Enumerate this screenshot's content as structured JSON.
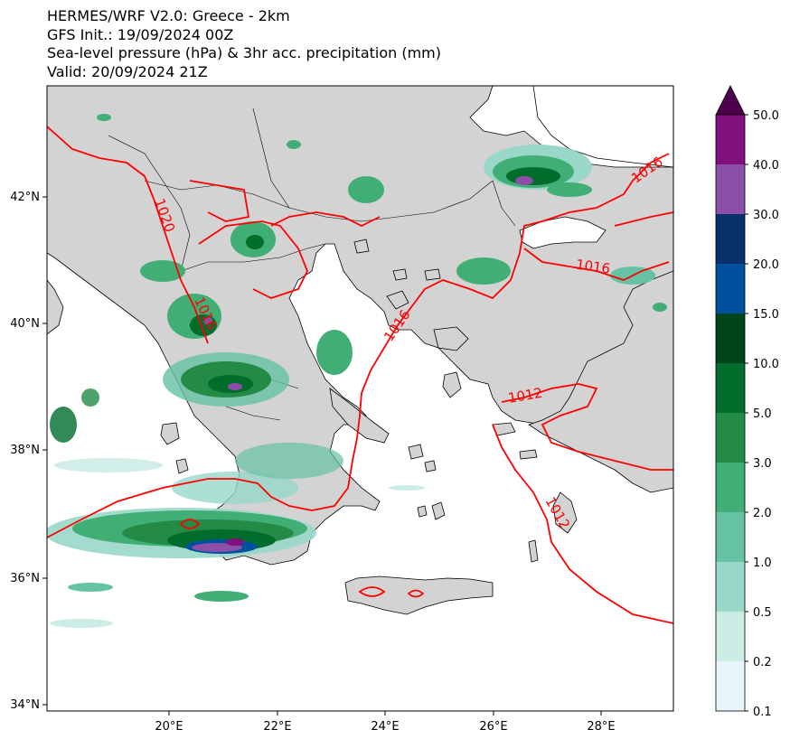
{
  "header": {
    "line1": "HERMES/WRF V2.0: Greece - 2km",
    "line2": "GFS Init.: 19/09/2024 00Z",
    "line3": "Sea-level pressure (hPa) & 3hr acc. precipitation (mm)",
    "line4": "Valid: 20/09/2024 21Z"
  },
  "map": {
    "lon_ticks": [
      "20°E",
      "22°E",
      "24°E",
      "26°E",
      "28°E"
    ],
    "lat_ticks": [
      "42°N",
      "40°N",
      "38°N",
      "36°N",
      "34°N"
    ],
    "land_color": "#d3d3d3",
    "sea_color": "#ffffff",
    "isobar_color": "#ff0000",
    "isobar_labels": [
      "1020",
      "1016",
      "1016",
      "1016",
      "1012",
      "1012"
    ]
  },
  "colorbar": {
    "levels": [
      "0.1",
      "0.2",
      "0.5",
      "1.0",
      "2.0",
      "3.0",
      "5.0",
      "10.0",
      "15.0",
      "20.0",
      "30.0",
      "40.0",
      "50.0"
    ],
    "colors": [
      "#e5f5f9",
      "#ccece6",
      "#99d8c9",
      "#66c2a4",
      "#41ae76",
      "#238b45",
      "#006d2c",
      "#00441b",
      "#0050a0",
      "#08306b",
      "#8c4fa8",
      "#810f7c",
      "#4d004b"
    ],
    "extend_color": "#4d004b"
  }
}
